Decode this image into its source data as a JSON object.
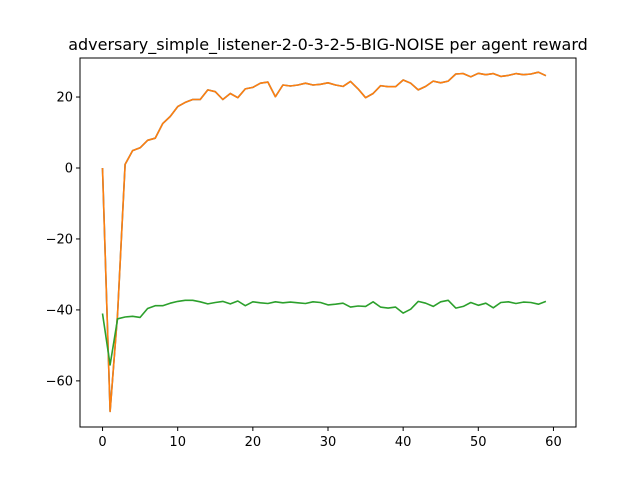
{
  "chart_data": {
    "type": "line",
    "title": "adversary_simple_listener-2-0-3-2-5-BIG-NOISE per agent reward",
    "xlabel": "",
    "ylabel": "",
    "xlim": [
      -3,
      63
    ],
    "ylim": [
      -73,
      31
    ],
    "grid": false,
    "x_ticks": [
      0,
      10,
      20,
      30,
      40,
      50,
      60
    ],
    "y_ticks": [
      -60,
      -40,
      -20,
      0,
      20
    ],
    "x_tick_labels": [
      "0",
      "10",
      "20",
      "30",
      "40",
      "50",
      "60"
    ],
    "y_tick_labels": [
      "−60",
      "−40",
      "−20",
      "0",
      "20"
    ],
    "x": [
      0,
      1,
      2,
      3,
      4,
      5,
      6,
      7,
      8,
      9,
      10,
      11,
      12,
      13,
      14,
      15,
      16,
      17,
      18,
      19,
      20,
      21,
      22,
      23,
      24,
      25,
      26,
      27,
      28,
      29,
      30,
      31,
      32,
      33,
      34,
      35,
      36,
      37,
      38,
      39,
      40,
      41,
      42,
      43,
      44,
      45,
      46,
      47,
      48,
      49,
      50,
      51,
      52,
      53,
      54,
      55,
      56,
      57,
      58,
      59
    ],
    "series": [
      {
        "color": "#1f77b4",
        "values": [
          0.0,
          -68.6,
          -41.0,
          1.0,
          4.9,
          5.7,
          7.8,
          8.4,
          12.5,
          14.5,
          17.3,
          18.5,
          19.3,
          19.3,
          22.0,
          21.5,
          19.3,
          21.0,
          19.8,
          22.3,
          22.7,
          23.9,
          24.2,
          20.1,
          23.4,
          23.1,
          23.4,
          23.9,
          23.4,
          23.6,
          24.0,
          23.4,
          23.0,
          24.4,
          22.3,
          19.8,
          21.0,
          23.2,
          22.9,
          22.9,
          24.8,
          23.9,
          22.0,
          23.0,
          24.5,
          24.0,
          24.5,
          26.5,
          26.6,
          25.7,
          26.7,
          26.3,
          26.6,
          25.8,
          26.1,
          26.6,
          26.3,
          26.5,
          27.0,
          26.0
        ]
      },
      {
        "color": "#ff7f0e",
        "values": [
          0.0,
          -68.6,
          -41.0,
          1.0,
          4.9,
          5.7,
          7.8,
          8.4,
          12.5,
          14.5,
          17.3,
          18.5,
          19.3,
          19.3,
          22.0,
          21.5,
          19.3,
          21.0,
          19.8,
          22.3,
          22.7,
          23.9,
          24.2,
          20.1,
          23.4,
          23.1,
          23.4,
          23.9,
          23.4,
          23.6,
          24.0,
          23.4,
          23.0,
          24.4,
          22.3,
          19.8,
          21.0,
          23.2,
          22.9,
          22.9,
          24.8,
          23.9,
          22.0,
          23.0,
          24.5,
          24.0,
          24.5,
          26.5,
          26.6,
          25.7,
          26.7,
          26.3,
          26.6,
          25.8,
          26.1,
          26.6,
          26.3,
          26.5,
          27.0,
          26.0
        ]
      },
      {
        "color": "#2ca02c",
        "values": [
          -41.0,
          -55.5,
          -42.5,
          -42.0,
          -41.8,
          -42.1,
          -39.6,
          -38.8,
          -38.8,
          -38.1,
          -37.6,
          -37.3,
          -37.3,
          -37.7,
          -38.3,
          -37.9,
          -37.6,
          -38.3,
          -37.5,
          -38.8,
          -37.7,
          -38.0,
          -38.2,
          -37.7,
          -38.0,
          -37.8,
          -38.0,
          -38.2,
          -37.7,
          -37.9,
          -38.6,
          -38.4,
          -38.1,
          -39.2,
          -38.9,
          -39.0,
          -37.7,
          -39.2,
          -39.5,
          -39.2,
          -40.9,
          -39.8,
          -37.6,
          -38.1,
          -39.0,
          -37.7,
          -37.3,
          -39.5,
          -39.0,
          -37.9,
          -38.7,
          -38.1,
          -39.4,
          -37.9,
          -37.7,
          -38.2,
          -37.8,
          -37.9,
          -38.4,
          -37.6
        ]
      }
    ]
  }
}
